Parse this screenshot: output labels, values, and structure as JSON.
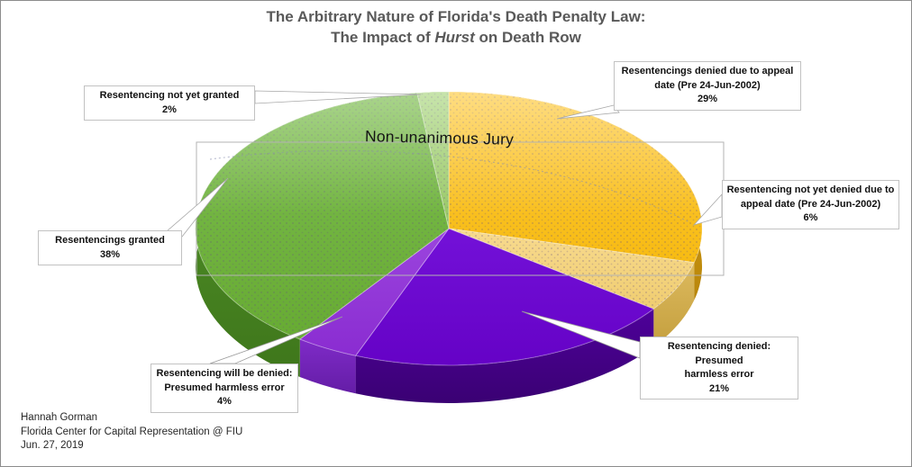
{
  "title": {
    "line1": "The Arbitrary Nature of Florida's Death Penalty Law:",
    "line2_pre": "The Impact of ",
    "line2_italic": "Hurst",
    "line2_post": " on Death Row"
  },
  "center_label": "Non-unanimous Jury",
  "callouts": {
    "not_yet_granted": {
      "text": "Resentencing not yet granted\n2%"
    },
    "denied_appeal_date": {
      "text": "Resentencings denied due to appeal\ndate (Pre 24-Jun-2002)\n29%"
    },
    "not_yet_denied_appeal_date": {
      "text": "Resentencing not yet denied due to\nappeal date (Pre 24-Jun-2002)\n6%"
    },
    "granted": {
      "text": "Resentencings granted\n38%"
    },
    "will_be_denied": {
      "text": "Resentencing will be denied:\nPresumed harmless error\n4%"
    },
    "denied_harmless": {
      "text": "Resentencing denied: Presumed\nharmless error\n21%"
    }
  },
  "footer": {
    "line1": "Hannah Gorman",
    "line2": "Florida Center for Capital Representation @ FIU",
    "line3": "Jun. 27, 2019"
  },
  "chart_data": {
    "type": "pie",
    "style": "3d",
    "title": "The Arbitrary Nature of Florida's Death Penalty Law: The Impact of Hurst on Death Row",
    "center_label": "Non-unanimous Jury",
    "unit": "percent",
    "start_angle_deg": 0,
    "direction": "clockwise",
    "slices": [
      {
        "id": "denied-appeal-date",
        "label": "Resentencings denied due to appeal date (Pre 24-Jun-2002)",
        "value": 29,
        "top1": "#FDCA3D",
        "top2": "#F7BB12",
        "side1": "#DFA413",
        "side2": "#B8860B",
        "texture": true
      },
      {
        "id": "not-yet-denied-appeal-date",
        "label": "Resentencing not yet denied due to appeal date (Pre 24-Jun-2002)",
        "value": 6,
        "top1": "#F7DA8F",
        "top2": "#F0CD70",
        "side1": "#DDBA5E",
        "side2": "#C49F3E",
        "texture": true
      },
      {
        "id": "denied-harmless-error",
        "label": "Resentencing denied: Presumed harmless error",
        "value": 21,
        "top1": "#7311D8",
        "top2": "#6502C6",
        "side1": "#4E019A",
        "side2": "#3A0173",
        "texture": false
      },
      {
        "id": "will-be-denied-harmless-error",
        "label": "Resentencing will be denied: Presumed harmless error",
        "value": 4,
        "top1": "#9B45DE",
        "top2": "#8A2CD1",
        "side1": "#7F2BC8",
        "side2": "#641DA6",
        "texture": false
      },
      {
        "id": "granted",
        "label": "Resentencings granted",
        "value": 38,
        "top1": "#7CBD4E",
        "top2": "#67AB33",
        "side1": "#55962A",
        "side2": "#3E761B",
        "texture": true
      },
      {
        "id": "not-yet-granted",
        "label": "Resentencing not yet granted",
        "value": 2,
        "top1": "#A9D57E",
        "top2": "#98C765",
        "side1": "#85B656",
        "side2": "#6FA244",
        "texture": true
      }
    ]
  }
}
